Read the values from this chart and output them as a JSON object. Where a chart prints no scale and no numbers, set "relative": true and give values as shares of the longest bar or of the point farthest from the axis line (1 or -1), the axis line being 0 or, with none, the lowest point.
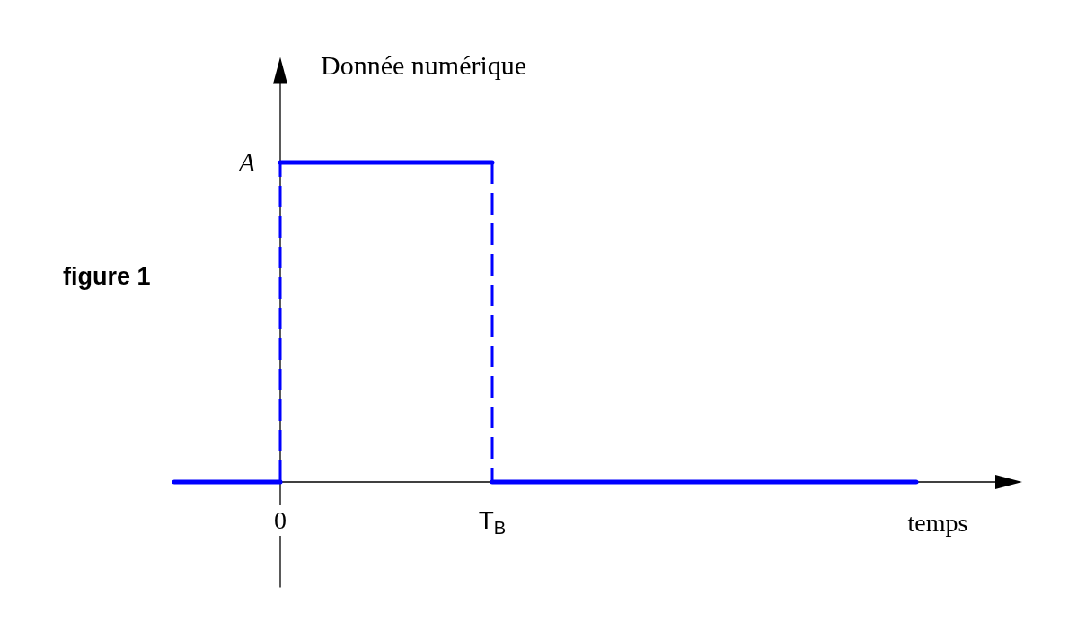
{
  "chart_data": {
    "type": "line",
    "relative": true,
    "ylabel": "Donnée numérique",
    "xlabel": "temps",
    "annotations": [
      "figure 1",
      "A"
    ],
    "categories": [
      null,
      "0",
      null,
      "T$_{B}$",
      null,
      null,
      null,
      null
    ],
    "series": [
      {
        "color": "#0000ff",
        "line_style": "solid",
        "values": [
          0,
          0,
          null,
          null,
          null,
          null,
          null,
          null
        ]
      },
      {
        "color": "#0000ff",
        "line_style": "dashed",
        "x": [
          "0",
          "0"
        ],
        "values": [
          0,
          1
        ]
      },
      {
        "color": "#0000ff",
        "line_style": "solid",
        "values": [
          null,
          1,
          1,
          1,
          null,
          null,
          null,
          null
        ]
      },
      {
        "color": "#0000ff",
        "line_style": "dashed",
        "x": [
          "T$_{B}$",
          "T$_{B}$"
        ],
        "values": [
          1,
          0
        ]
      },
      {
        "color": "#0000ff",
        "line_style": "solid",
        "values": [
          null,
          null,
          null,
          0,
          0,
          0,
          0,
          0
        ]
      }
    ]
  }
}
